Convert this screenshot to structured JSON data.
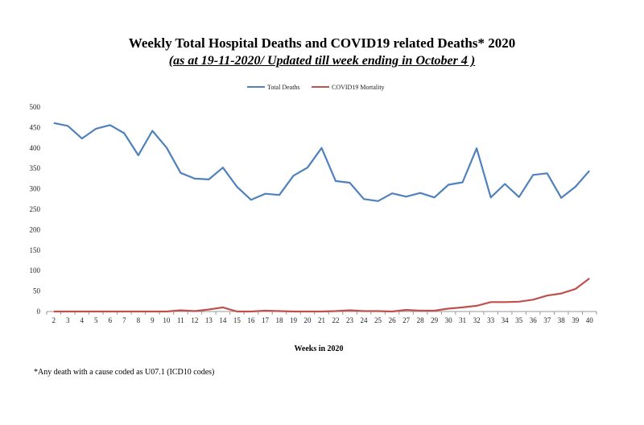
{
  "chart_data": {
    "type": "line",
    "title": "Weekly Total Hospital Deaths and COVID19 related Deaths* 2020",
    "subtitle": "(as at 19-11-2020/ Updated till week ending in October 4 )",
    "xlabel": "Weeks in 2020",
    "ylabel": "",
    "ylim": [
      0,
      500
    ],
    "yticks": [
      0,
      50,
      100,
      150,
      200,
      250,
      300,
      350,
      400,
      450,
      500
    ],
    "x": [
      2,
      3,
      4,
      5,
      6,
      7,
      8,
      9,
      10,
      11,
      12,
      13,
      14,
      15,
      16,
      17,
      18,
      19,
      20,
      21,
      22,
      23,
      24,
      25,
      26,
      27,
      28,
      29,
      30,
      31,
      32,
      33,
      34,
      35,
      36,
      37,
      38,
      39,
      40
    ],
    "legend_position": "top-center",
    "grid": false,
    "series": [
      {
        "name": "Total Deaths",
        "color": "#4f81bd",
        "values": [
          461,
          454,
          423,
          447,
          456,
          436,
          382,
          442,
          401,
          339,
          325,
          323,
          352,
          305,
          273,
          288,
          285,
          332,
          352,
          400,
          319,
          315,
          275,
          270,
          289,
          281,
          290,
          279,
          310,
          316,
          399,
          279,
          312,
          280,
          334,
          338,
          278,
          305,
          344
        ]
      },
      {
        "name": "COVID19 Mortality",
        "color": "#c0504d",
        "values": [
          0,
          0,
          0,
          0,
          0,
          0,
          0,
          0,
          0,
          3,
          1,
          5,
          10,
          0,
          0,
          2,
          1,
          0,
          0,
          0,
          1,
          3,
          1,
          1,
          0,
          4,
          2,
          2,
          7,
          10,
          14,
          23,
          23,
          24,
          29,
          39,
          44,
          55,
          81
        ]
      }
    ]
  },
  "footnote": "*Any death with a cause coded as  U07.1 (ICD10 codes)"
}
